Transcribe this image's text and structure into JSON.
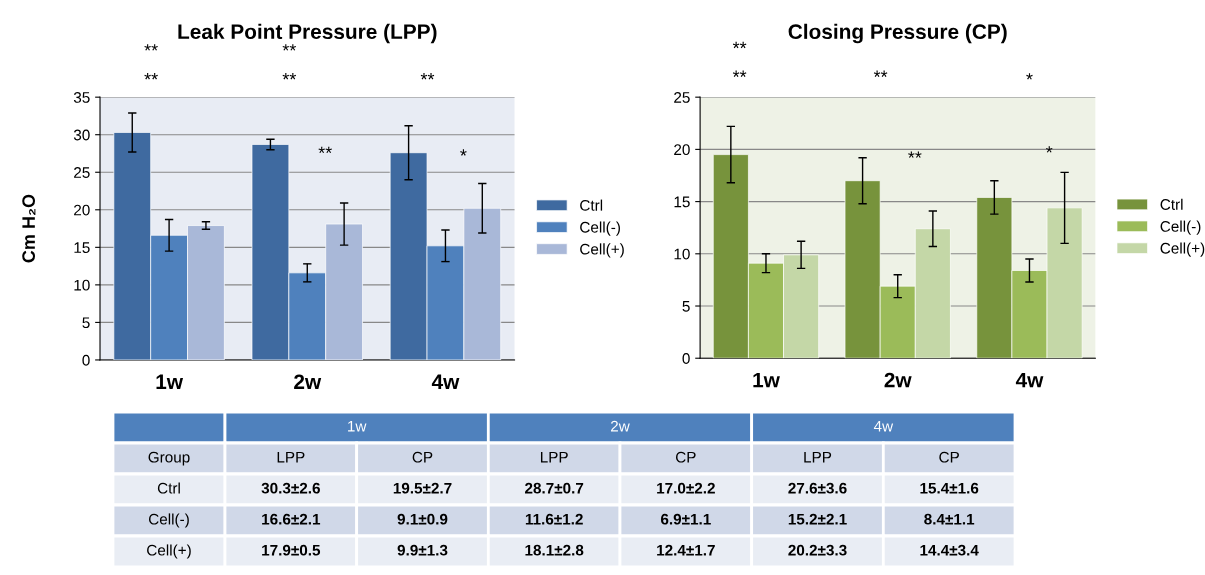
{
  "chart_data": [
    {
      "type": "bar",
      "title": "Leak Point Pressure (LPP)",
      "ylabel": "Cm H₂O",
      "categories": [
        "1w",
        "2w",
        "4w"
      ],
      "ylim": [
        0,
        35
      ],
      "yticks": [
        0,
        5,
        10,
        15,
        20,
        25,
        30,
        35
      ],
      "grid": "y",
      "legend": "right",
      "series": [
        {
          "name": "Ctrl",
          "color": "#3f6aa0",
          "values": [
            30.3,
            28.7,
            27.6
          ],
          "errors": [
            2.6,
            0.7,
            3.6
          ]
        },
        {
          "name": "Cell(-)",
          "color": "#4f81bd",
          "values": [
            16.6,
            11.6,
            15.2
          ],
          "errors": [
            2.1,
            1.2,
            2.1
          ]
        },
        {
          "name": "Cell(+)",
          "color": "#a9b8d8",
          "values": [
            17.9,
            18.1,
            20.2
          ],
          "errors": [
            0.5,
            2.8,
            3.3
          ]
        }
      ],
      "annotations": [
        "**",
        "**",
        "**",
        "**",
        "**",
        "**",
        "*"
      ]
    },
    {
      "type": "bar",
      "title": "Closing Pressure (CP)",
      "categories": [
        "1w",
        "2w",
        "4w"
      ],
      "ylim": [
        0,
        25
      ],
      "yticks": [
        0,
        5,
        10,
        15,
        20,
        25
      ],
      "grid": "y",
      "legend": "right",
      "series": [
        {
          "name": "Ctrl",
          "color": "#77933c",
          "values": [
            19.5,
            17.0,
            15.4
          ],
          "errors": [
            2.7,
            2.2,
            1.6
          ]
        },
        {
          "name": "Cell(-)",
          "color": "#9bbb59",
          "values": [
            9.1,
            6.9,
            8.4
          ],
          "errors": [
            0.9,
            1.1,
            1.1
          ]
        },
        {
          "name": "Cell(+)",
          "color": "#c4d7a7",
          "values": [
            9.9,
            12.4,
            14.4
          ],
          "errors": [
            1.3,
            1.7,
            3.4
          ]
        }
      ],
      "annotations": [
        "**",
        "**",
        "**",
        "**",
        "*",
        "*"
      ]
    },
    {
      "type": "other",
      "annotations": [
        "Group",
        "LPP",
        "CP",
        "30.3±2.6",
        "19.5±2.7",
        "28.7±0.7",
        "17.0±2.2",
        "27.6±3.6",
        "15.4±1.6",
        "16.6±2.1",
        "9.1±0.9",
        "11.6±1.2",
        "6.9±1.1",
        "15.2±2.1",
        "8.4±1.1",
        "17.9±0.5",
        "9.9±1.3",
        "18.1±2.8",
        "12.4±1.7",
        "20.2±3.3",
        "14.4±3.4"
      ]
    }
  ]
}
